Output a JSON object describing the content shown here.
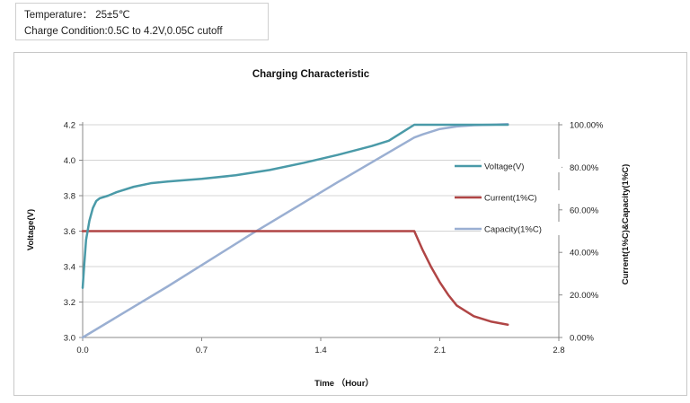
{
  "info": {
    "temperature": "Temperature： 25±5℃",
    "charge_condition": "Charge Condition:0.5C to 4.2V,0.05C cutoff"
  },
  "chart_data": {
    "type": "line",
    "title": "Charging Characteristic",
    "xlabel": "Time （Hour）",
    "ylabel_left": "Voltage(V)",
    "ylabel_right": "Current(1%C)&Capacity(1%C)",
    "xlim": [
      0,
      2.8
    ],
    "ylim_left": [
      3.0,
      4.2
    ],
    "ylim_right": [
      0,
      100
    ],
    "x_ticks": [
      "0.0",
      "0.7",
      "1.4",
      "2.1",
      "2.8"
    ],
    "y_ticks_left": [
      "3.0",
      "3.2",
      "3.4",
      "3.6",
      "3.8",
      "4.0",
      "4.2"
    ],
    "y_ticks_right": [
      "0.00%",
      "20.00%",
      "40.00%",
      "60.00%",
      "80.00%",
      "100.00%"
    ],
    "grid": "horizontal",
    "legend_position": "right",
    "colors": {
      "voltage": "#4a9aa8",
      "current": "#b04545",
      "capacity": "#9aafd2"
    },
    "series": [
      {
        "name": "Voltage(V)",
        "axis": "left",
        "x": [
          0.0,
          0.01,
          0.02,
          0.04,
          0.06,
          0.08,
          0.1,
          0.15,
          0.2,
          0.3,
          0.4,
          0.5,
          0.7,
          0.9,
          1.1,
          1.3,
          1.5,
          1.7,
          1.8,
          1.9,
          1.95,
          2.0,
          2.1,
          2.3,
          2.5
        ],
        "y": [
          3.28,
          3.42,
          3.55,
          3.66,
          3.73,
          3.77,
          3.785,
          3.8,
          3.82,
          3.85,
          3.87,
          3.88,
          3.895,
          3.915,
          3.945,
          3.985,
          4.03,
          4.08,
          4.11,
          4.17,
          4.2,
          4.2,
          4.2,
          4.2,
          4.2
        ]
      },
      {
        "name": "Current(1%C)",
        "axis": "right",
        "x": [
          0.0,
          0.5,
          1.0,
          1.5,
          1.95,
          2.0,
          2.05,
          2.1,
          2.15,
          2.2,
          2.3,
          2.4,
          2.5
        ],
        "y": [
          50,
          50,
          50,
          50,
          50,
          41,
          33,
          26,
          20,
          15,
          10,
          7.5,
          6
        ]
      },
      {
        "name": "Capacity(1%C)",
        "axis": "right",
        "x": [
          0.0,
          0.5,
          1.0,
          1.5,
          1.95,
          2.0,
          2.1,
          2.2,
          2.3,
          2.4,
          2.5
        ],
        "y": [
          0,
          24,
          49,
          73,
          94,
          95.5,
          98,
          99.2,
          99.8,
          100,
          100.3
        ]
      }
    ]
  }
}
